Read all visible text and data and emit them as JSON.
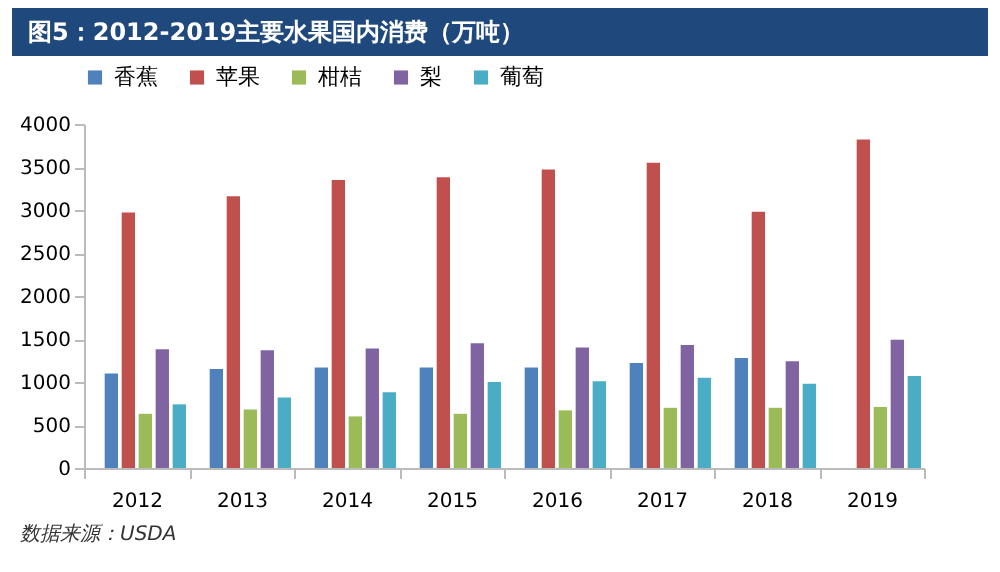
{
  "chart_data": {
    "type": "bar",
    "title": "图5：2012-2019主要水果国内消费（万吨）",
    "annotations": [
      "数据来源：USDA"
    ],
    "categories": [
      "2012",
      "2013",
      "2014",
      "2015",
      "2016",
      "2017",
      "2018",
      "2019"
    ],
    "series": [
      {
        "name": "香蕉",
        "color": "#4f81bd",
        "values": [
          1100,
          1150,
          1170,
          1170,
          1170,
          1220,
          1280,
          null
        ]
      },
      {
        "name": "苹果",
        "color": "#c0504d",
        "values": [
          2970,
          3160,
          3350,
          3380,
          3470,
          3550,
          2980,
          3820
        ]
      },
      {
        "name": "柑桔",
        "color": "#9bbb59",
        "values": [
          630,
          680,
          600,
          630,
          670,
          700,
          700,
          710
        ]
      },
      {
        "name": "梨",
        "color": "#8064a2",
        "values": [
          1380,
          1370,
          1390,
          1450,
          1400,
          1430,
          1240,
          1490
        ]
      },
      {
        "name": "葡萄",
        "color": "#4bacc6",
        "values": [
          740,
          820,
          880,
          1000,
          1010,
          1050,
          980,
          1070
        ]
      }
    ],
    "ylim": [
      0,
      4000
    ],
    "yticks": [
      0,
      500,
      1000,
      1500,
      2000,
      2500,
      3000,
      3500,
      4000
    ],
    "grid": false,
    "legend": "top"
  }
}
